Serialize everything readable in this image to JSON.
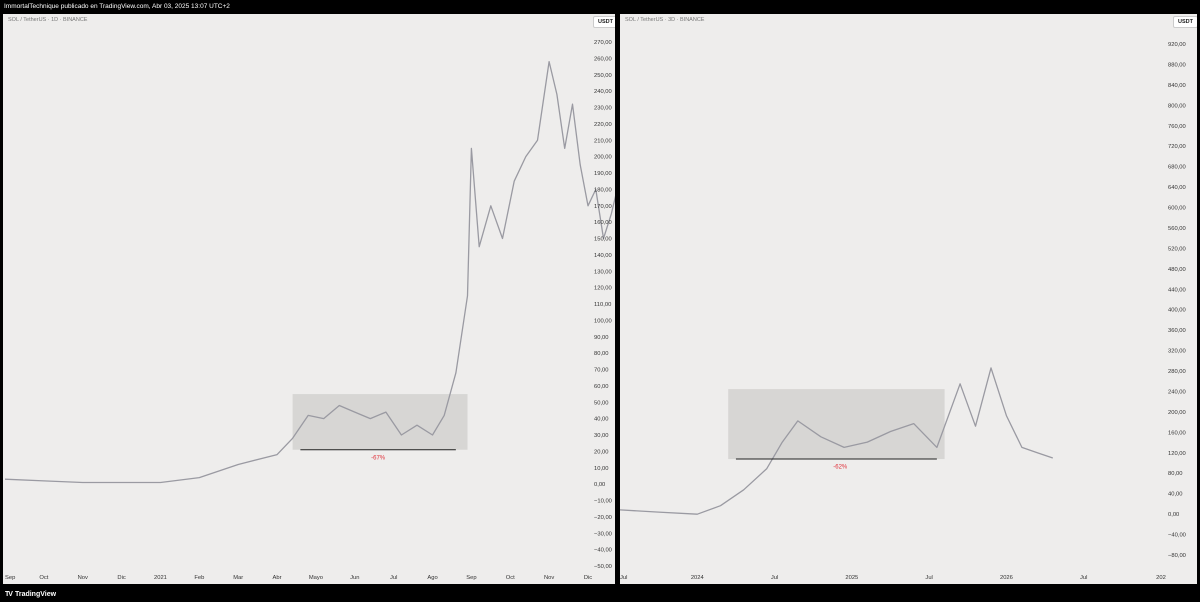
{
  "header": {
    "title": "ImmortalTechnique publicado en TradingView.com, Abr 03, 2025 13:07 UTC+2"
  },
  "footer": {
    "brand": "TradingView",
    "logo_glyph": "TV"
  },
  "chart_data": [
    {
      "type": "line",
      "symbol": "SOL / TetherUS · 1D · BINANCE",
      "currency_badge": "USDT",
      "series_color": "#9a9aa2",
      "y_ticks": [
        "270,00",
        "260,00",
        "250,00",
        "240,00",
        "230,00",
        "220,00",
        "210,00",
        "200,00",
        "190,00",
        "180,00",
        "170,00",
        "160,00",
        "150,00",
        "140,00",
        "130,00",
        "120,00",
        "110,00",
        "100,00",
        "90,00",
        "80,00",
        "70,00",
        "60,00",
        "50,00",
        "40,00",
        "30,00",
        "20,00",
        "10,00",
        "0,00",
        "−10,00",
        "−20,00",
        "−30,00",
        "−40,00",
        "−50,00"
      ],
      "ylim": [
        -50,
        270
      ],
      "x_ticks": [
        "Sep",
        "Oct",
        "Nov",
        "Dic",
        "2021",
        "Feb",
        "Mar",
        "Abr",
        "Mayo",
        "Jun",
        "Jul",
        "Ago",
        "Sep",
        "Oct",
        "Nov",
        "Dic"
      ],
      "x": [
        0,
        1,
        2,
        3,
        4,
        5,
        6,
        7,
        7.4,
        7.8,
        8.2,
        8.6,
        9,
        9.4,
        9.8,
        10.2,
        10.6,
        11,
        11.3,
        11.6,
        11.9,
        12,
        12.2,
        12.5,
        12.8,
        13.1,
        13.4,
        13.7,
        14,
        14.2,
        14.4,
        14.6,
        14.8,
        15,
        15.2,
        15.4,
        15.6,
        15.8,
        16
      ],
      "values": [
        3,
        2,
        1,
        1,
        1,
        4,
        12,
        18,
        28,
        42,
        40,
        48,
        44,
        40,
        44,
        30,
        36,
        30,
        42,
        68,
        115,
        205,
        145,
        170,
        150,
        185,
        200,
        210,
        258,
        238,
        205,
        232,
        195,
        170,
        180,
        150,
        165,
        185,
        197
      ],
      "annotations": [
        {
          "type": "range_box",
          "x_start": 7.4,
          "x_end": 11.9,
          "y_low": 21,
          "y_high": 55,
          "fill": "#d7d6d4"
        },
        {
          "type": "baseline",
          "x_start": 7.6,
          "x_end": 11.6,
          "y": 21,
          "color": "#222222"
        },
        {
          "type": "label",
          "text": "-67%",
          "x": 9.6,
          "y": 15,
          "color": "#e0303a"
        }
      ]
    },
    {
      "type": "line",
      "symbol": "SOL / TetherUS · 3D · BINANCE",
      "currency_badge": "USDT",
      "series_color": "#9a9aa2",
      "y_ticks": [
        "920,00",
        "880,00",
        "840,00",
        "800,00",
        "760,00",
        "720,00",
        "680,00",
        "640,00",
        "600,00",
        "560,00",
        "520,00",
        "480,00",
        "440,00",
        "400,00",
        "360,00",
        "320,00",
        "280,00",
        "240,00",
        "200,00",
        "160,00",
        "120,00",
        "80,00",
        "40,00",
        "0,00",
        "−40,00",
        "−80,00"
      ],
      "ylim": [
        -80,
        920
      ],
      "x_ticks": [
        "Jul",
        "2024",
        "Jul",
        "2025",
        "Jul",
        "2026",
        "Jul",
        "202"
      ],
      "x": [
        0,
        0.5,
        1,
        1.3,
        1.6,
        1.9,
        2.1,
        2.3,
        2.6,
        2.9,
        3.2,
        3.5,
        3.8,
        4.1,
        4.4,
        4.6,
        4.8,
        5,
        5.2,
        5.4,
        5.6
      ],
      "values": [
        22,
        18,
        14,
        30,
        60,
        100,
        150,
        190,
        160,
        140,
        150,
        170,
        185,
        140,
        260,
        180,
        290,
        200,
        140,
        130,
        120
      ],
      "annotations": [
        {
          "type": "range_box",
          "x_start": 1.4,
          "x_end": 4.2,
          "y_low": 118,
          "y_high": 250,
          "fill": "#d7d6d4"
        },
        {
          "type": "baseline",
          "x_start": 1.5,
          "x_end": 4.1,
          "y": 118,
          "color": "#222222"
        },
        {
          "type": "label",
          "text": "-62%",
          "x": 2.85,
          "y": 100,
          "color": "#e0303a"
        }
      ]
    }
  ]
}
